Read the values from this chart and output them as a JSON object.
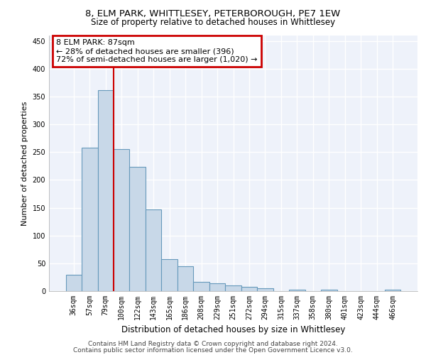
{
  "title1": "8, ELM PARK, WHITTLESEY, PETERBOROUGH, PE7 1EW",
  "title2": "Size of property relative to detached houses in Whittlesey",
  "xlabel": "Distribution of detached houses by size in Whittlesey",
  "ylabel": "Number of detached properties",
  "categories": [
    "36sqm",
    "57sqm",
    "79sqm",
    "100sqm",
    "122sqm",
    "143sqm",
    "165sqm",
    "186sqm",
    "208sqm",
    "229sqm",
    "251sqm",
    "272sqm",
    "294sqm",
    "315sqm",
    "337sqm",
    "358sqm",
    "380sqm",
    "401sqm",
    "423sqm",
    "444sqm",
    "466sqm"
  ],
  "values": [
    30,
    258,
    362,
    255,
    224,
    147,
    57,
    45,
    17,
    14,
    10,
    8,
    5,
    0,
    3,
    0,
    2,
    0,
    0,
    0,
    3
  ],
  "bar_color": "#c8d8e8",
  "bar_edge_color": "#6699bb",
  "bar_edge_width": 0.8,
  "ylim": [
    0,
    460
  ],
  "yticks": [
    0,
    50,
    100,
    150,
    200,
    250,
    300,
    350,
    400,
    450
  ],
  "annotation_text": "8 ELM PARK: 87sqm\n← 28% of detached houses are smaller (396)\n72% of semi-detached houses are larger (1,020) →",
  "annotation_box_color": "#ffffff",
  "annotation_border_color": "#cc0000",
  "footer1": "Contains HM Land Registry data © Crown copyright and database right 2024.",
  "footer2": "Contains public sector information licensed under the Open Government Licence v3.0.",
  "background_color": "#eef2fa",
  "grid_color": "#ffffff",
  "title1_fontsize": 9.5,
  "title2_fontsize": 8.5,
  "xlabel_fontsize": 8.5,
  "ylabel_fontsize": 8,
  "tick_fontsize": 7,
  "footer_fontsize": 6.5,
  "annotation_fontsize": 8
}
